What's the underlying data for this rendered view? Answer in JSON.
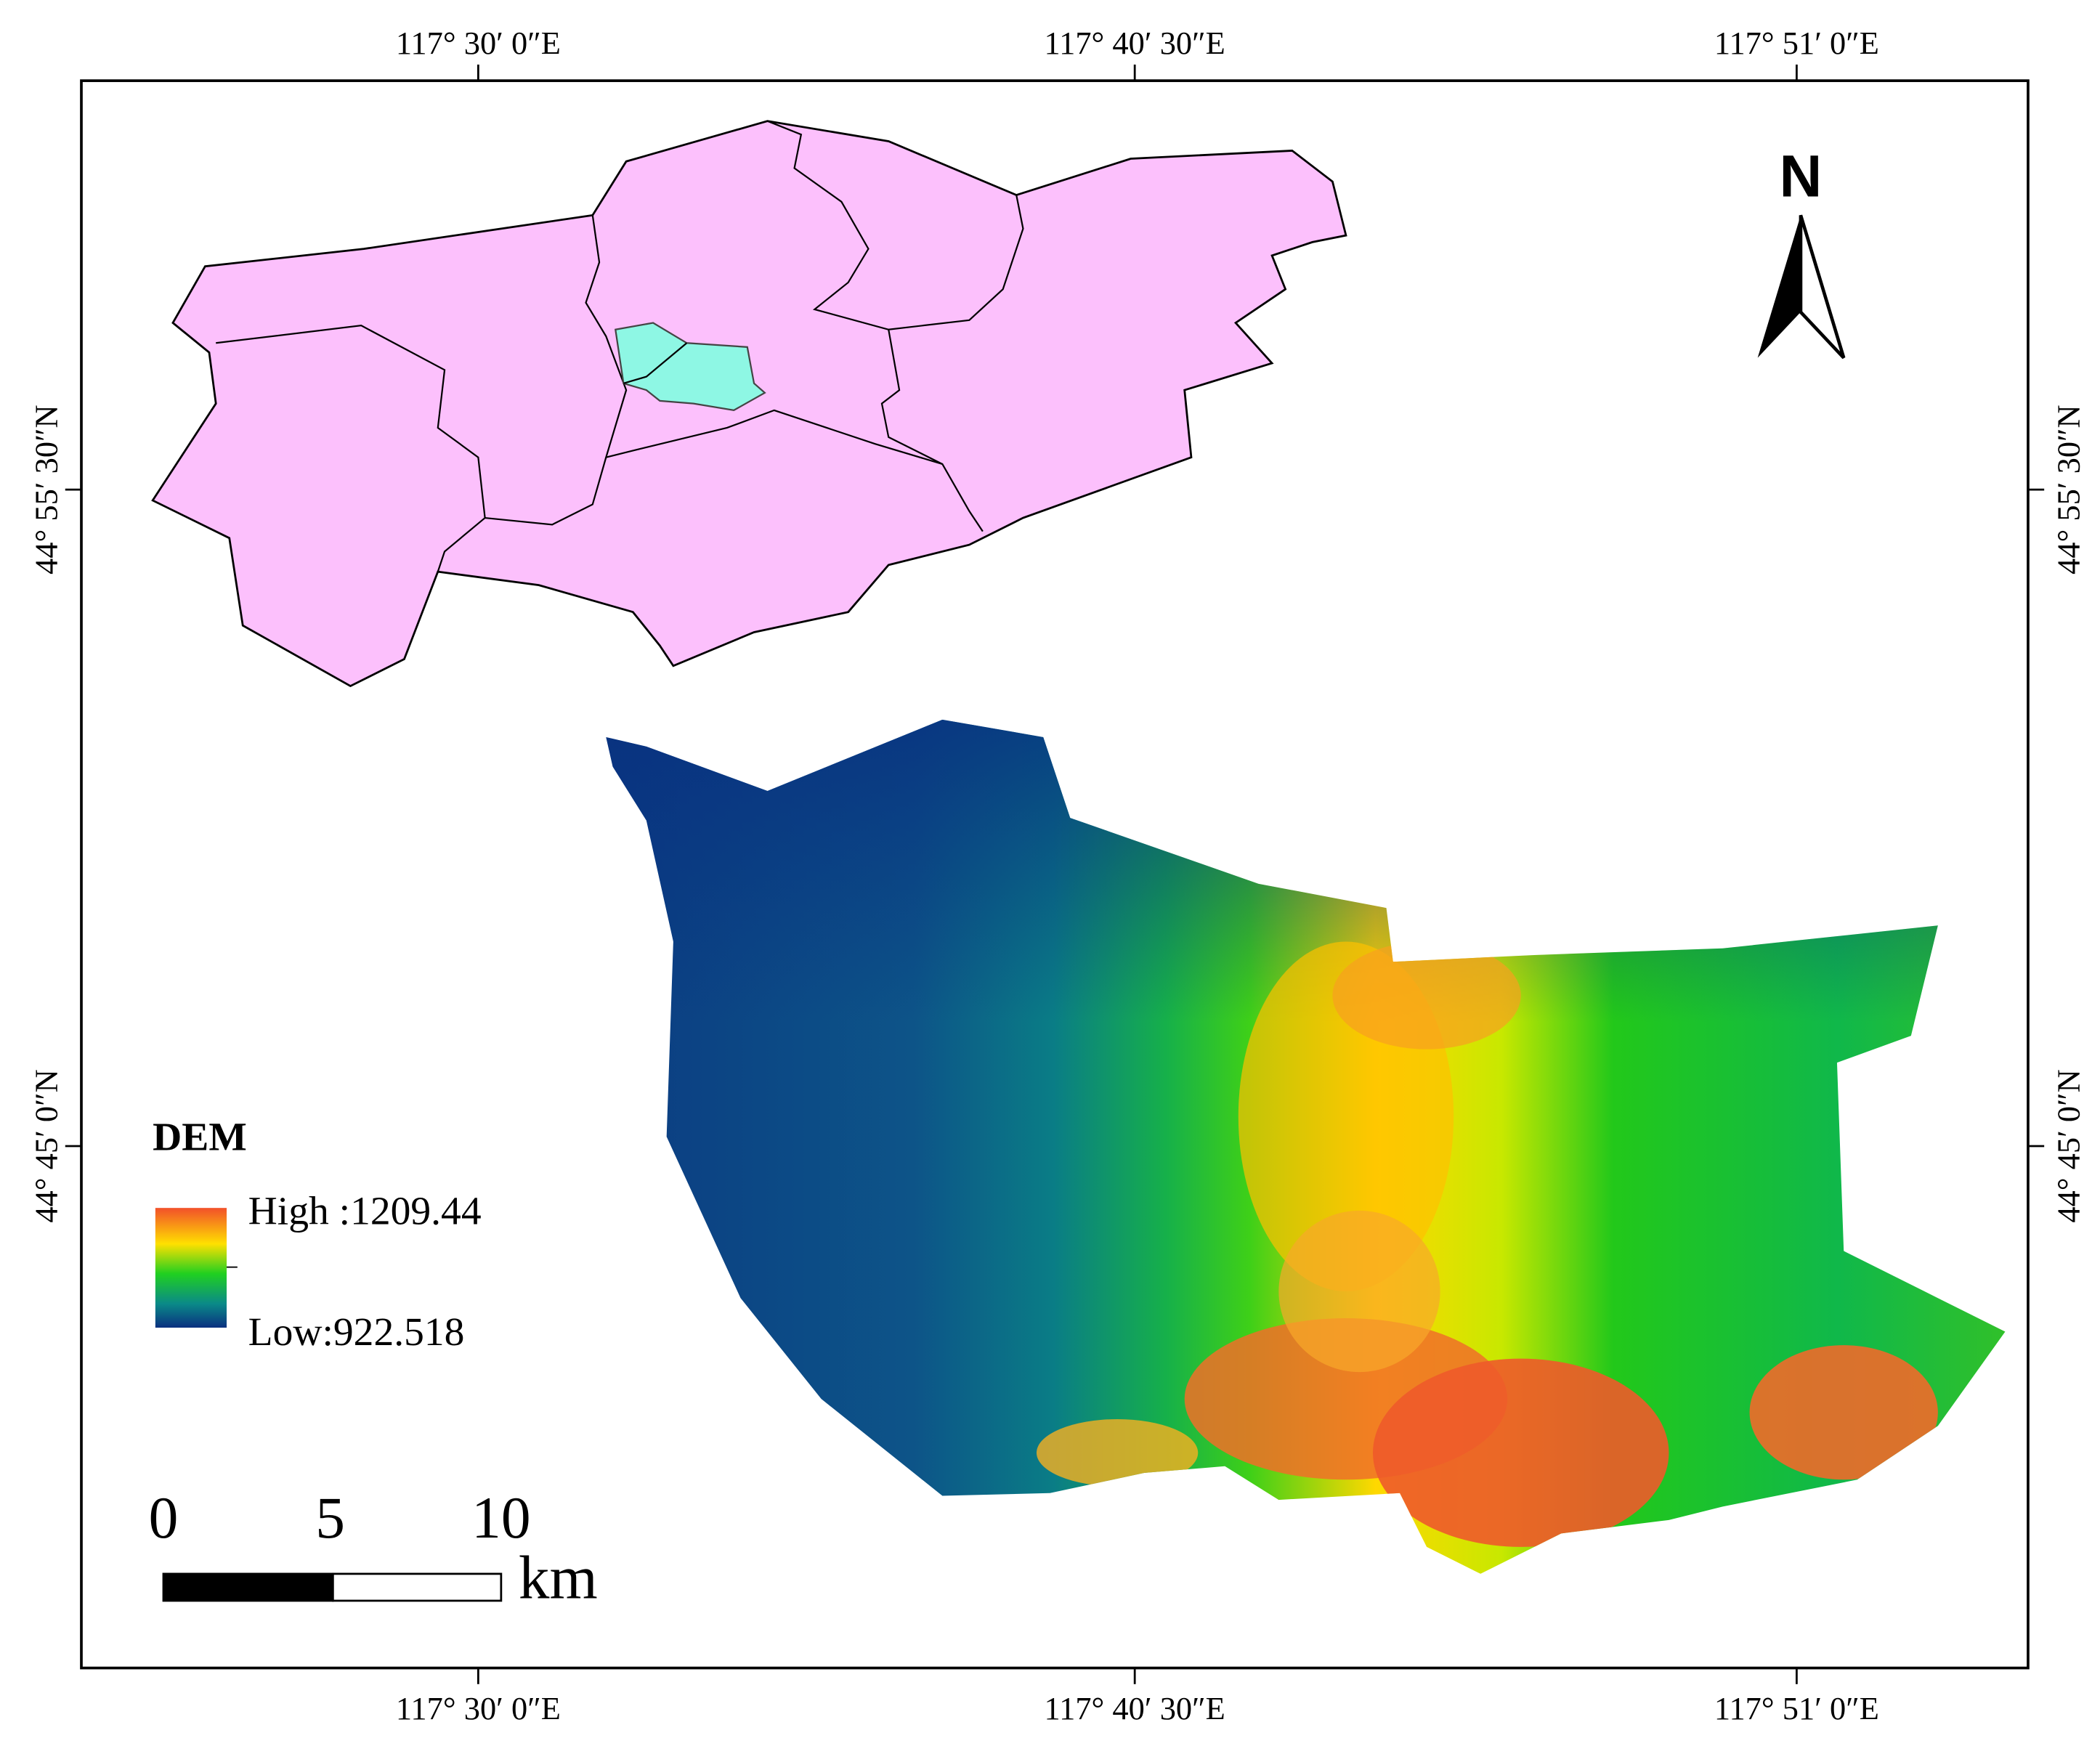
{
  "axes": {
    "top": [
      "117° 30′ 0″E",
      "117° 40′ 30″E",
      "117° 51′ 0″E"
    ],
    "bottom": [
      "117° 30′ 0″E",
      "117° 40′ 30″E",
      "117° 51′ 0″E"
    ],
    "left": [
      "44° 55′ 30″N",
      "44° 45′ 0″N"
    ],
    "right": [
      "44° 55′ 30″N",
      "44° 45′ 0″N"
    ]
  },
  "north_arrow": {
    "label": "N"
  },
  "legend": {
    "title": "DEM",
    "high": "High :1209.44",
    "low": "Low:922.518"
  },
  "scale_bar": {
    "ticks": [
      "0",
      "5",
      "10"
    ],
    "unit": "km"
  }
}
